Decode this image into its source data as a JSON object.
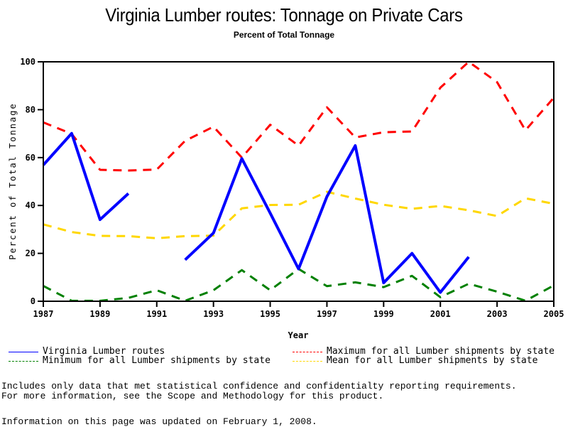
{
  "chart_data": {
    "type": "line",
    "title": "Virginia Lumber routes: Tonnage on Private Cars",
    "subtitle": "Percent of Total Tonnage",
    "xlabel": "Year",
    "ylabel": "Percent of Total Tonnage",
    "xlim": [
      1987,
      2005
    ],
    "ylim": [
      0,
      100
    ],
    "x_ticks": [
      "1987",
      "1989",
      "1991",
      "1993",
      "1995",
      "1997",
      "1999",
      "2001",
      "2003",
      "2005"
    ],
    "y_ticks": [
      "0",
      "20",
      "40",
      "60",
      "80",
      "100"
    ],
    "grid": false,
    "legend_position": "bottom",
    "x": [
      1987,
      1988,
      1989,
      1990,
      1991,
      1992,
      1993,
      1994,
      1995,
      1996,
      1997,
      1998,
      1999,
      2000,
      2001,
      2002,
      2003,
      2004,
      2005
    ],
    "series": [
      {
        "name": "Virginia Lumber routes",
        "color": "#0000ff",
        "style": "solid",
        "values": [
          56.9,
          70.1,
          34.1,
          45.0,
          null,
          17.3,
          28.5,
          59.6,
          36.8,
          13.5,
          43.7,
          65.0,
          7.7,
          20.0,
          3.7,
          18.5,
          null,
          null,
          null
        ]
      },
      {
        "name": "Maximum for all Lumber shipments by state",
        "color": "#ff0000",
        "style": "dashed",
        "values": [
          74.7,
          69.9,
          54.9,
          54.6,
          55.0,
          67.0,
          72.9,
          60.0,
          73.7,
          65.0,
          81.0,
          68.4,
          70.6,
          70.9,
          89.2,
          100.0,
          91.5,
          71.4,
          85.0
        ]
      },
      {
        "name": "Minimum for all Lumber shipments by state",
        "color": "#008000",
        "style": "dashed",
        "values": [
          6.4,
          0.2,
          0.2,
          1.4,
          4.6,
          0.2,
          4.6,
          13.0,
          4.6,
          13.5,
          6.3,
          7.9,
          5.9,
          10.6,
          1.7,
          7.3,
          4.0,
          0.2,
          6.6
        ]
      },
      {
        "name": "Mean for all Lumber shipments by state",
        "color": "#ffd700",
        "style": "dashed",
        "values": [
          32.1,
          28.9,
          27.3,
          27.2,
          26.3,
          27.2,
          27.4,
          38.8,
          40.2,
          40.3,
          45.7,
          42.9,
          40.3,
          38.6,
          39.8,
          38.0,
          35.6,
          43.0,
          40.7
        ]
      }
    ]
  },
  "legend": {
    "items": [
      {
        "label": "Virginia Lumber routes",
        "color": "#0000ff",
        "style": "solid"
      },
      {
        "label": "Maximum for all Lumber shipments by state",
        "color": "#ff0000",
        "style": "dashed"
      },
      {
        "label": "Minimum for all Lumber shipments by state",
        "color": "#008000",
        "style": "dashed"
      },
      {
        "label": "Mean for all Lumber shipments by state",
        "color": "#ffd700",
        "style": "dashed"
      }
    ]
  },
  "footer": {
    "note_line1": "Includes only data that met statistical confidence and confidentialty reporting requirements.",
    "note_line2": "For more information, see the Scope and Methodology for this product.",
    "updated": "Information on this page was updated on February 1, 2008."
  }
}
